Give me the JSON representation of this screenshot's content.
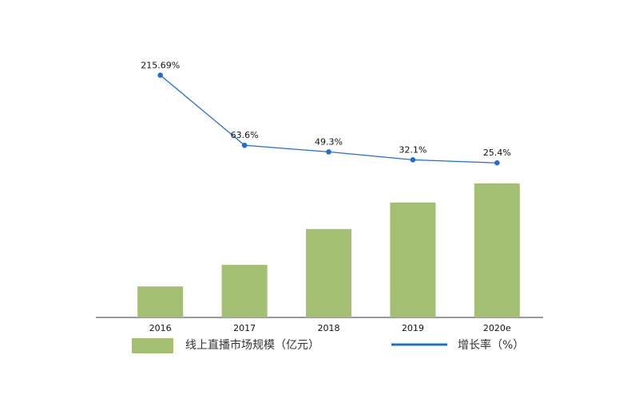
{
  "chart_data": {
    "type": "bar",
    "categories": [
      "2016",
      "2017",
      "2018",
      "2019",
      "2020e"
    ],
    "series": [
      {
        "name": "线上直播市场规模（亿元）",
        "color": "#a2bf72",
        "values": [
          115,
          195,
          328,
          426,
          497
        ]
      },
      {
        "name": "增长率（%）",
        "color": "#1f6fd1",
        "axis": "y2",
        "values": [
          215.69,
          63.6,
          49.3,
          32.1,
          25.4
        ],
        "value_labels": [
          "215.69%",
          "63.6%",
          "49.3%",
          "32.1%",
          "25.4%"
        ]
      }
    ],
    "ylim": [
      0,
      1000
    ],
    "y2lim": [
      -310,
      275
    ]
  }
}
